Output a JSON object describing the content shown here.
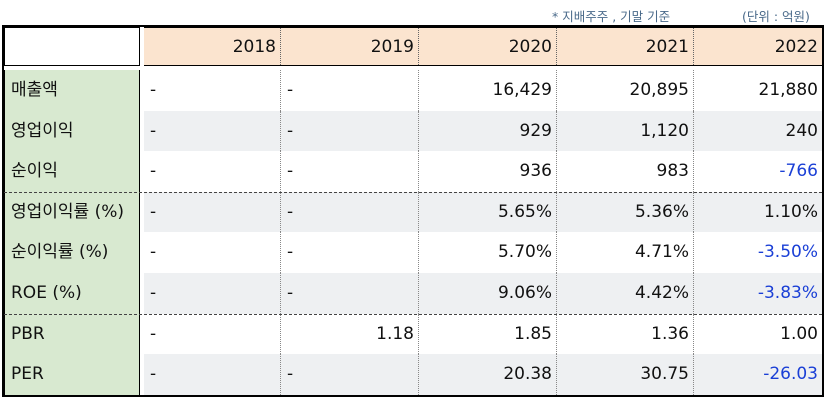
{
  "notes": {
    "basis": "* 지배주주 , 기말 기준",
    "unit": "(단위 : 억원)"
  },
  "table": {
    "years": [
      "2018",
      "2019",
      "2020",
      "2021",
      "2022"
    ],
    "rows": [
      {
        "label": "매출액",
        "values": [
          "-",
          "-",
          "16,429",
          "20,895",
          "21,880"
        ]
      },
      {
        "label": "영업이익",
        "values": [
          "-",
          "-",
          "929",
          "1,120",
          "240"
        ]
      },
      {
        "label": "순이익",
        "values": [
          "-",
          "-",
          "936",
          "983",
          "-766"
        ]
      },
      {
        "label": "영업이익률 (%)",
        "values": [
          "-",
          "-",
          "5.65%",
          "5.36%",
          "1.10%"
        ]
      },
      {
        "label": "순이익률 (%)",
        "values": [
          "-",
          "-",
          "5.70%",
          "4.71%",
          "-3.50%"
        ]
      },
      {
        "label": "ROE (%)",
        "values": [
          "-",
          "-",
          "9.06%",
          "4.42%",
          "-3.83%"
        ]
      },
      {
        "label": "PBR",
        "values": [
          "-",
          "1.18",
          "1.85",
          "1.36",
          "1.00"
        ]
      },
      {
        "label": "PER",
        "values": [
          "-",
          "-",
          "20.38",
          "30.75",
          "-26.03"
        ]
      }
    ]
  },
  "colors": {
    "header_bg": "#fbe4cf",
    "label_bg": "#d8e9d0",
    "shade_bg": "#eef0f2",
    "negative_text": "#1a3fd6",
    "note_text": "#4a6a8a"
  }
}
